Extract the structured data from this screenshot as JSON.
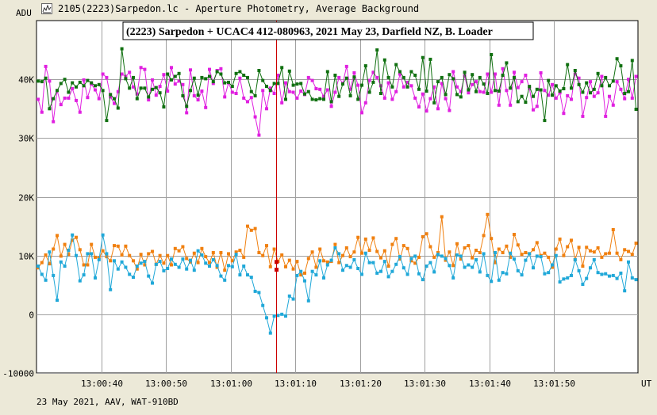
{
  "window": {
    "title": "2105(2223)Sarpedon.lc - Aperture Photometry, Average Background",
    "icon": "chart-app-icon"
  },
  "footer": {
    "text": "23 May 2021, AAV, WAT-910BD"
  },
  "colors": {
    "background": "#ece9d8",
    "plot_bg": "#ffffff",
    "grid": "#a0a0a0",
    "cursor": "#cc0000",
    "series_magenta": "#e020e0",
    "series_green": "#107010",
    "series_orange": "#f08010",
    "series_blue": "#20a8d8"
  },
  "chart_data": {
    "type": "line",
    "title": "(2223) Sarpedon + UCAC4 412-080963,  2021 May 23,  Darfield NZ,  B. Loader",
    "ylabel": "ADU",
    "xlabel": "UT",
    "ylim": [
      -10000,
      50000
    ],
    "xlim": [
      30,
      98.2
    ],
    "x_start_label": "13:00:30",
    "xtick_values": [
      40,
      50,
      60,
      70,
      80,
      90
    ],
    "xtick_labels": [
      "13:00:40",
      "13:00:50",
      "13:01:00",
      "13:01:10",
      "13:01:20",
      "13:01:30",
      "13:01:40",
      "13:01:50"
    ],
    "xtick_positions_s": [
      40,
      50,
      60,
      70,
      80,
      90,
      100,
      110
    ],
    "ytick_values": [
      -10000,
      0,
      10000,
      20000,
      30000,
      40000
    ],
    "ytick_labels": [
      "-10000",
      "0",
      "10K",
      "20K",
      "30K",
      "40K"
    ],
    "grid": true,
    "cursor_x": 72.1,
    "point_interval_s": 0.4,
    "x_first_s": 30.2,
    "series": [
      {
        "key": "magenta",
        "values": [
          36600,
          34400,
          42200,
          39700,
          32800,
          38100,
          35700,
          36800,
          36800,
          38400,
          36400,
          34400,
          39900,
          36900,
          39200,
          38200,
          36700,
          40900,
          40300,
          37000,
          35900,
          37900,
          40900,
          40500,
          41200,
          38700,
          37500,
          42000,
          41700,
          36500,
          39900,
          37300,
          38800,
          40800,
          38000,
          42000,
          39200,
          39700,
          39100,
          34300,
          41600,
          37200,
          36500,
          38000,
          35200,
          41700,
          39300,
          41500,
          41800,
          37000,
          39400,
          37800,
          37600,
          40200,
          36800,
          36200,
          36900,
          33600,
          30500,
          38100,
          35000,
          38500,
          37600,
          40700,
          36000,
          39400,
          37900,
          37800,
          36800,
          38000,
          37400,
          40300,
          39800,
          38400,
          38300,
          37100,
          38200,
          35400,
          37800,
          40300,
          39300,
          42200,
          38300,
          41100,
          39000,
          34300,
          36000,
          39800,
          41200,
          40300,
          38900,
          36800,
          39400,
          36600,
          37900,
          40900,
          38700,
          39500,
          38900,
          36800,
          35300,
          37500,
          34600,
          36700,
          38700,
          35000,
          39300,
          36700,
          34700,
          41300,
          38700,
          37900,
          40600,
          37700,
          39100,
          39600,
          37900,
          37800,
          40900,
          37800,
          40900,
          35600,
          41800,
          38100,
          35600,
          41200,
          38600,
          39600,
          40700,
          38500,
          34800,
          35400,
          41100,
          38100,
          37300,
          39100,
          36800,
          37700,
          34200,
          37200,
          36600,
          40900,
          40200,
          33700,
          36900,
          39600,
          37100,
          37700,
          40500,
          33700,
          37100,
          35600,
          39600,
          38300,
          36700,
          40000,
          36800,
          40500
        ]
      },
      {
        "key": "green",
        "values": [
          39700,
          39600,
          40200,
          35000,
          36700,
          38100,
          39300,
          40000,
          37800,
          39400,
          38700,
          39500,
          38900,
          39800,
          39400,
          38900,
          39100,
          38100,
          33000,
          37400,
          36700,
          35100,
          45200,
          40100,
          38500,
          40300,
          36700,
          38500,
          38500,
          37000,
          38300,
          38600,
          37700,
          35300,
          40900,
          39900,
          40500,
          41000,
          37200,
          35400,
          38100,
          40200,
          37300,
          40300,
          40100,
          40500,
          39600,
          41300,
          40900,
          39400,
          39500,
          38800,
          41000,
          41300,
          40700,
          40300,
          37900,
          37200,
          41500,
          39800,
          38800,
          38100,
          39300,
          39300,
          42000,
          36600,
          41400,
          39000,
          39200,
          39300,
          37500,
          37900,
          36600,
          36500,
          36700,
          36600,
          41300,
          36200,
          40700,
          37100,
          39200,
          40200,
          37200,
          40400,
          36600,
          39000,
          42300,
          37800,
          39500,
          45000,
          37600,
          43300,
          40300,
          38700,
          42500,
          41300,
          40300,
          38700,
          41300,
          40700,
          38300,
          43700,
          38000,
          43400,
          36000,
          39600,
          40300,
          37400,
          40800,
          40100,
          37400,
          37000,
          41200,
          38200,
          40800,
          37900,
          40300,
          39200,
          37600,
          44200,
          38100,
          38000,
          40700,
          42800,
          38500,
          40300,
          36200,
          37100,
          36100,
          38800,
          37100,
          38300,
          38200,
          33000,
          39800,
          37300,
          38900,
          38000,
          38400,
          42500,
          38500,
          41500,
          39100,
          37800,
          39400,
          37700,
          38300,
          41000,
          38900,
          40300,
          38900,
          39700,
          43500,
          42300,
          37600,
          37900,
          43200,
          34900
        ]
      },
      {
        "key": "orange",
        "values": [
          7900,
          8800,
          10100,
          8600,
          11100,
          13400,
          9900,
          11900,
          10200,
          12600,
          13100,
          11000,
          8400,
          8400,
          11900,
          9700,
          9600,
          10800,
          9800,
          9100,
          11700,
          11600,
          10100,
          11600,
          10000,
          9100,
          7700,
          10200,
          8400,
          10300,
          10700,
          8500,
          10000,
          8700,
          10000,
          8400,
          11200,
          10800,
          11500,
          9500,
          8900,
          10400,
          8800,
          11200,
          9800,
          8800,
          10500,
          8000,
          10500,
          7500,
          10300,
          9100,
          10600,
          10900,
          9700,
          15000,
          14300,
          14600,
          10500,
          10000,
          11700,
          8100,
          11100,
          9000,
          10100,
          8100,
          9200,
          7700,
          9000,
          6700,
          7000,
          9500,
          10600,
          8000,
          11100,
          9100,
          8900,
          9000,
          11900,
          8800,
          10000,
          11300,
          9800,
          10600,
          13100,
          10400,
          12800,
          10900,
          13000,
          10700,
          9600,
          10800,
          8200,
          11900,
          12900,
          9400,
          11700,
          11200,
          9100,
          8700,
          9700,
          13200,
          13700,
          11500,
          9700,
          10500,
          16600,
          9200,
          10600,
          8300,
          12000,
          9400,
          11300,
          11700,
          9600,
          10900,
          10500,
          13400,
          17000,
          12900,
          8800,
          11100,
          10500,
          11600,
          9700,
          13600,
          11800,
          10200,
          10500,
          10300,
          11000,
          12200,
          10000,
          10400,
          9700,
          8000,
          11100,
          12800,
          10000,
          11500,
          12600,
          9300,
          11400,
          8200,
          11400,
          10800,
          10600,
          11300,
          9700,
          10300,
          10400,
          14400,
          10400,
          9300,
          11000,
          10700,
          10200,
          12100
        ]
      },
      {
        "key": "blue",
        "values": [
          8200,
          6800,
          5800,
          10600,
          6600,
          2400,
          8900,
          8200,
          10900,
          13500,
          10000,
          5700,
          6700,
          10300,
          10300,
          6200,
          9300,
          13500,
          10300,
          4200,
          9100,
          7700,
          8900,
          8000,
          6800,
          6300,
          8200,
          8700,
          9000,
          6500,
          5300,
          8500,
          9000,
          7400,
          7800,
          9400,
          8500,
          8000,
          9400,
          7700,
          9200,
          7500,
          10800,
          10100,
          8700,
          8200,
          9300,
          8300,
          6500,
          5800,
          8300,
          8100,
          10200,
          6700,
          8200,
          6700,
          6300,
          3900,
          3700,
          1500,
          -600,
          -3200,
          -300,
          -200,
          0,
          -300,
          3100,
          2600,
          6600,
          7300,
          5700,
          2300,
          7300,
          6700,
          9100,
          6200,
          8400,
          9200,
          11300,
          10300,
          7500,
          8300,
          8000,
          9300,
          7800,
          6800,
          10400,
          8800,
          8800,
          7000,
          7300,
          9000,
          6400,
          7300,
          8500,
          9800,
          7900,
          6800,
          9500,
          9900,
          6900,
          5900,
          8200,
          8800,
          7200,
          10200,
          9900,
          9500,
          8300,
          6200,
          10100,
          9900,
          8000,
          8400,
          8000,
          9300,
          7200,
          10300,
          6600,
          5600,
          10500,
          5800,
          7100,
          6900,
          10400,
          9400,
          7400,
          6700,
          9200,
          10300,
          7900,
          9900,
          9800,
          6900,
          7100,
          8400,
          10000,
          5500,
          6000,
          6200,
          6600,
          9300,
          7400,
          5100,
          6100,
          7900,
          9300,
          7100,
          6800,
          6900,
          6500,
          6600,
          6100,
          7000,
          4000,
          8900,
          6200,
          5900
        ]
      }
    ],
    "highlight_points": [
      {
        "series": "orange",
        "x": 72.0,
        "y": 8900
      },
      {
        "series": "orange",
        "x": 72.2,
        "y": 7600
      }
    ]
  }
}
